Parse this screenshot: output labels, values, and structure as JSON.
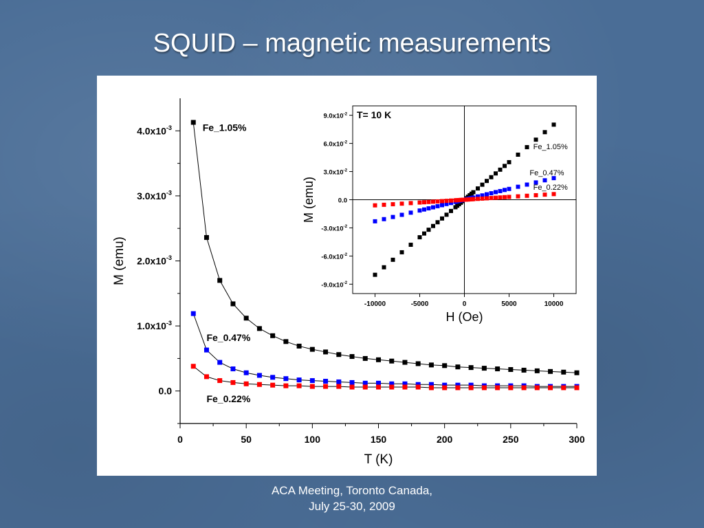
{
  "slide": {
    "title": "SQUID – magnetic measurements",
    "footer_line1": "ACA Meeting, Toronto Canada,",
    "footer_line2": "July 25-30, 2009"
  },
  "colors": {
    "background": "#4a6d96",
    "series_fe105": "#000000",
    "series_fe047": "#0000ff",
    "series_fe022": "#ff0000"
  },
  "chart_data": [
    {
      "type": "line",
      "title": "",
      "xlabel": "T (K)",
      "ylabel": "M (emu)",
      "xlim": [
        0,
        300
      ],
      "ylim": [
        -0.0005,
        0.0045
      ],
      "xticks": [
        0,
        50,
        100,
        150,
        200,
        250,
        300
      ],
      "xtick_labels": [
        "0",
        "50",
        "100",
        "150",
        "200",
        "250",
        "300"
      ],
      "yticks": [
        0,
        0.001,
        0.002,
        0.003,
        0.004
      ],
      "ytick_labels": [
        {
          "base": "0.0",
          "exp": ""
        },
        {
          "base": "1.0x10",
          "exp": "-3"
        },
        {
          "base": "2.0x10",
          "exp": "-3"
        },
        {
          "base": "3.0x10",
          "exp": "-3"
        },
        {
          "base": "4.0x10",
          "exp": "-3"
        }
      ],
      "grid": false,
      "x": [
        10,
        20,
        30,
        40,
        50,
        60,
        70,
        80,
        90,
        100,
        110,
        120,
        130,
        140,
        150,
        160,
        170,
        180,
        190,
        200,
        210,
        220,
        230,
        240,
        250,
        260,
        270,
        280,
        290,
        300
      ],
      "series": [
        {
          "name": "Fe_1.05%",
          "color": "#000000",
          "label_x": 17,
          "label_y": 0.004,
          "values": [
            0.00413,
            0.00236,
            0.0017,
            0.00134,
            0.00112,
            0.00096,
            0.00085,
            0.00076,
            0.00069,
            0.00064,
            0.0006,
            0.00056,
            0.00053,
            0.0005,
            0.00048,
            0.00046,
            0.00044,
            0.00042,
            0.0004,
            0.00039,
            0.00037,
            0.00036,
            0.00035,
            0.00034,
            0.00033,
            0.00032,
            0.00031,
            0.0003,
            0.00029,
            0.00028
          ]
        },
        {
          "name": "Fe_0.47%",
          "color": "#0000ff",
          "label_x": 20,
          "label_y": 0.00077,
          "values": [
            0.00119,
            0.00063,
            0.00044,
            0.00034,
            0.00028,
            0.00024,
            0.00021,
            0.00019,
            0.00017,
            0.00016,
            0.00015,
            0.00014,
            0.00013,
            0.00012,
            0.00012,
            0.00011,
            0.00011,
            0.0001,
            0.0001,
            9e-05,
            9e-05,
            9e-05,
            8e-05,
            8e-05,
            8e-05,
            8e-05,
            7e-05,
            7e-05,
            7e-05,
            7e-05
          ]
        },
        {
          "name": "Fe_0.22%",
          "color": "#ff0000",
          "label_x": 20,
          "label_y": -0.00017,
          "values": [
            0.00038,
            0.00022,
            0.00016,
            0.00013,
            0.00011,
            0.0001,
            9e-05,
            8e-05,
            8e-05,
            7e-05,
            7e-05,
            7e-05,
            6e-05,
            6e-05,
            6e-05,
            6e-05,
            6e-05,
            6e-05,
            5e-05,
            5e-05,
            5e-05,
            5e-05,
            5e-05,
            5e-05,
            5e-05,
            5e-05,
            5e-05,
            5e-05,
            5e-05,
            5e-05
          ]
        }
      ]
    },
    {
      "type": "scatter",
      "title": "",
      "annotation": "T= 10 K",
      "xlabel": "H (Oe)",
      "ylabel": "M (emu)",
      "xlim": [
        -12500,
        12500
      ],
      "ylim": [
        -0.1,
        0.1
      ],
      "xticks": [
        -10000,
        -5000,
        0,
        5000,
        10000
      ],
      "xtick_labels": [
        "-10000",
        "-5000",
        "0",
        "5000",
        "10000"
      ],
      "yticks": [
        -0.09,
        -0.06,
        -0.03,
        0,
        0.03,
        0.06,
        0.09
      ],
      "ytick_labels": [
        {
          "base": "-9.0x10",
          "exp": "-2"
        },
        {
          "base": "-6.0x10",
          "exp": "-2"
        },
        {
          "base": "-3.0x10",
          "exp": "-2"
        },
        {
          "base": "0.0",
          "exp": ""
        },
        {
          "base": "3.0x10",
          "exp": "-2"
        },
        {
          "base": "6.0x10",
          "exp": "-2"
        },
        {
          "base": "9.0x10",
          "exp": "-2"
        }
      ],
      "grid": false,
      "x": [
        -10000,
        -9000,
        -8000,
        -7000,
        -6000,
        -5000,
        -4500,
        -4000,
        -3500,
        -3000,
        -2500,
        -2000,
        -1500,
        -1000,
        -800,
        -600,
        -400,
        -200,
        0,
        200,
        400,
        600,
        800,
        1000,
        1500,
        2000,
        2500,
        3000,
        3500,
        4000,
        4500,
        5000,
        6000,
        7000,
        8000,
        9000,
        10000
      ],
      "series": [
        {
          "name": "Fe_1.05%",
          "color": "#000000",
          "label_x": 7700,
          "label_y": 0.054,
          "values": [
            -0.08,
            -0.072,
            -0.064,
            -0.056,
            -0.048,
            -0.04,
            -0.036,
            -0.032,
            -0.028,
            -0.024,
            -0.02,
            -0.016,
            -0.012,
            -0.008,
            -0.0064,
            -0.0048,
            -0.0032,
            -0.0016,
            0,
            0.0016,
            0.0032,
            0.0048,
            0.0064,
            0.008,
            0.012,
            0.016,
            0.02,
            0.024,
            0.028,
            0.032,
            0.036,
            0.04,
            0.048,
            0.056,
            0.064,
            0.072,
            0.08
          ]
        },
        {
          "name": "Fe_0.47%",
          "color": "#0000ff",
          "label_x": 7300,
          "label_y": 0.026,
          "values": [
            -0.023,
            -0.0207,
            -0.0184,
            -0.0161,
            -0.0138,
            -0.0115,
            -0.0104,
            -0.0092,
            -0.0081,
            -0.0069,
            -0.0058,
            -0.0046,
            -0.0035,
            -0.0023,
            -0.0018,
            -0.0014,
            -0.0009,
            -0.0005,
            0,
            0.0005,
            0.0009,
            0.0014,
            0.0018,
            0.0023,
            0.0035,
            0.0046,
            0.0058,
            0.0069,
            0.0081,
            0.0092,
            0.0104,
            0.0115,
            0.0138,
            0.0161,
            0.0184,
            0.0207,
            0.023
          ]
        },
        {
          "name": "Fe_0.22%",
          "color": "#ff0000",
          "label_x": 7700,
          "label_y": 0.0105,
          "values": [
            -0.006,
            -0.0054,
            -0.0048,
            -0.0042,
            -0.0036,
            -0.003,
            -0.0027,
            -0.0024,
            -0.0021,
            -0.0018,
            -0.0015,
            -0.0012,
            -0.0009,
            -0.0006,
            -0.0005,
            -0.0004,
            -0.0002,
            -0.0001,
            0,
            0.0001,
            0.0002,
            0.0004,
            0.0005,
            0.0006,
            0.0009,
            0.0012,
            0.0015,
            0.0018,
            0.0021,
            0.0024,
            0.0027,
            0.003,
            0.0036,
            0.0042,
            0.0048,
            0.0054,
            0.006
          ]
        }
      ]
    }
  ]
}
